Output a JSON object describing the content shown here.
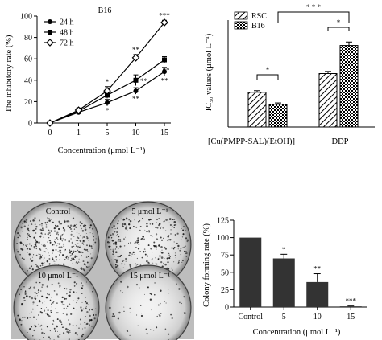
{
  "chart_data": [
    {
      "id": "A",
      "type": "line",
      "title": "B16",
      "xlabel": "Concentration (μmol L⁻¹)",
      "ylabel": "The inhibitory rate (%)",
      "categories": [
        "0",
        "1",
        "5",
        "10",
        "15"
      ],
      "ylim": [
        0,
        100
      ],
      "yticks": [
        0,
        20,
        40,
        60,
        80,
        100
      ],
      "legend_position": "top-left",
      "series": [
        {
          "name": "24 h",
          "marker": "circle",
          "values": [
            0,
            10,
            19,
            30,
            48
          ],
          "errors": [
            0,
            2,
            3,
            3,
            4
          ],
          "significance": [
            "",
            "",
            "*",
            "**",
            "**"
          ]
        },
        {
          "name": "48 h",
          "marker": "square",
          "values": [
            0,
            11,
            26,
            40,
            59
          ],
          "errors": [
            0,
            2,
            3,
            5,
            3
          ],
          "significance": [
            "",
            "",
            "",
            "**",
            "**"
          ]
        },
        {
          "name": "72 h",
          "marker": "diamond-open",
          "values": [
            0,
            12,
            30,
            61,
            94
          ],
          "errors": [
            0,
            2,
            4,
            3,
            2
          ],
          "significance": [
            "",
            "",
            "*",
            "**",
            "***"
          ]
        }
      ]
    },
    {
      "id": "B",
      "type": "bar",
      "ylabel": "IC₅₀ values (μmol L⁻¹)",
      "categories": [
        "[Cu(PMPP-SAL)(EtOH)]",
        "DDP"
      ],
      "ylim": [
        0,
        40
      ],
      "legend_position": "top-left",
      "series": [
        {
          "name": "RSC",
          "pattern": "diagonal",
          "values": [
            13.0,
            20.0
          ],
          "errors": [
            0.6,
            0.8
          ]
        },
        {
          "name": "B16",
          "pattern": "checker",
          "values": [
            8.5,
            30.5
          ],
          "errors": [
            0.5,
            1.3
          ]
        }
      ],
      "significance": [
        {
          "between": "RSC vs B16, Cu complex",
          "mark": "*"
        },
        {
          "between": "RSC vs B16, DDP",
          "mark": "*"
        },
        {
          "between": "B16 Cu complex vs B16 DDP",
          "mark": "* * *"
        }
      ]
    },
    {
      "id": "C",
      "type": "image-panel",
      "plates": [
        {
          "label": "Control",
          "density": 0.55
        },
        {
          "label": "5 μmol L⁻¹",
          "density": 0.42
        },
        {
          "label": "10 μmol L⁻¹",
          "density": 0.3
        },
        {
          "label": "15 μmol L⁻¹",
          "density": 0.08
        }
      ]
    },
    {
      "id": "D",
      "type": "bar",
      "xlabel": "Concentration (μmol L⁻¹)",
      "ylabel": "Colony forming rate (%)",
      "categories": [
        "Control",
        "5",
        "10",
        "15"
      ],
      "ylim": [
        0,
        125
      ],
      "yticks": [
        0,
        25,
        50,
        75,
        100,
        125
      ],
      "values": [
        100,
        70,
        36,
        1
      ],
      "errors": [
        0,
        6,
        12,
        0.5
      ],
      "significance": [
        "",
        "*",
        "**",
        "***"
      ],
      "bar_color": "#333333"
    }
  ]
}
